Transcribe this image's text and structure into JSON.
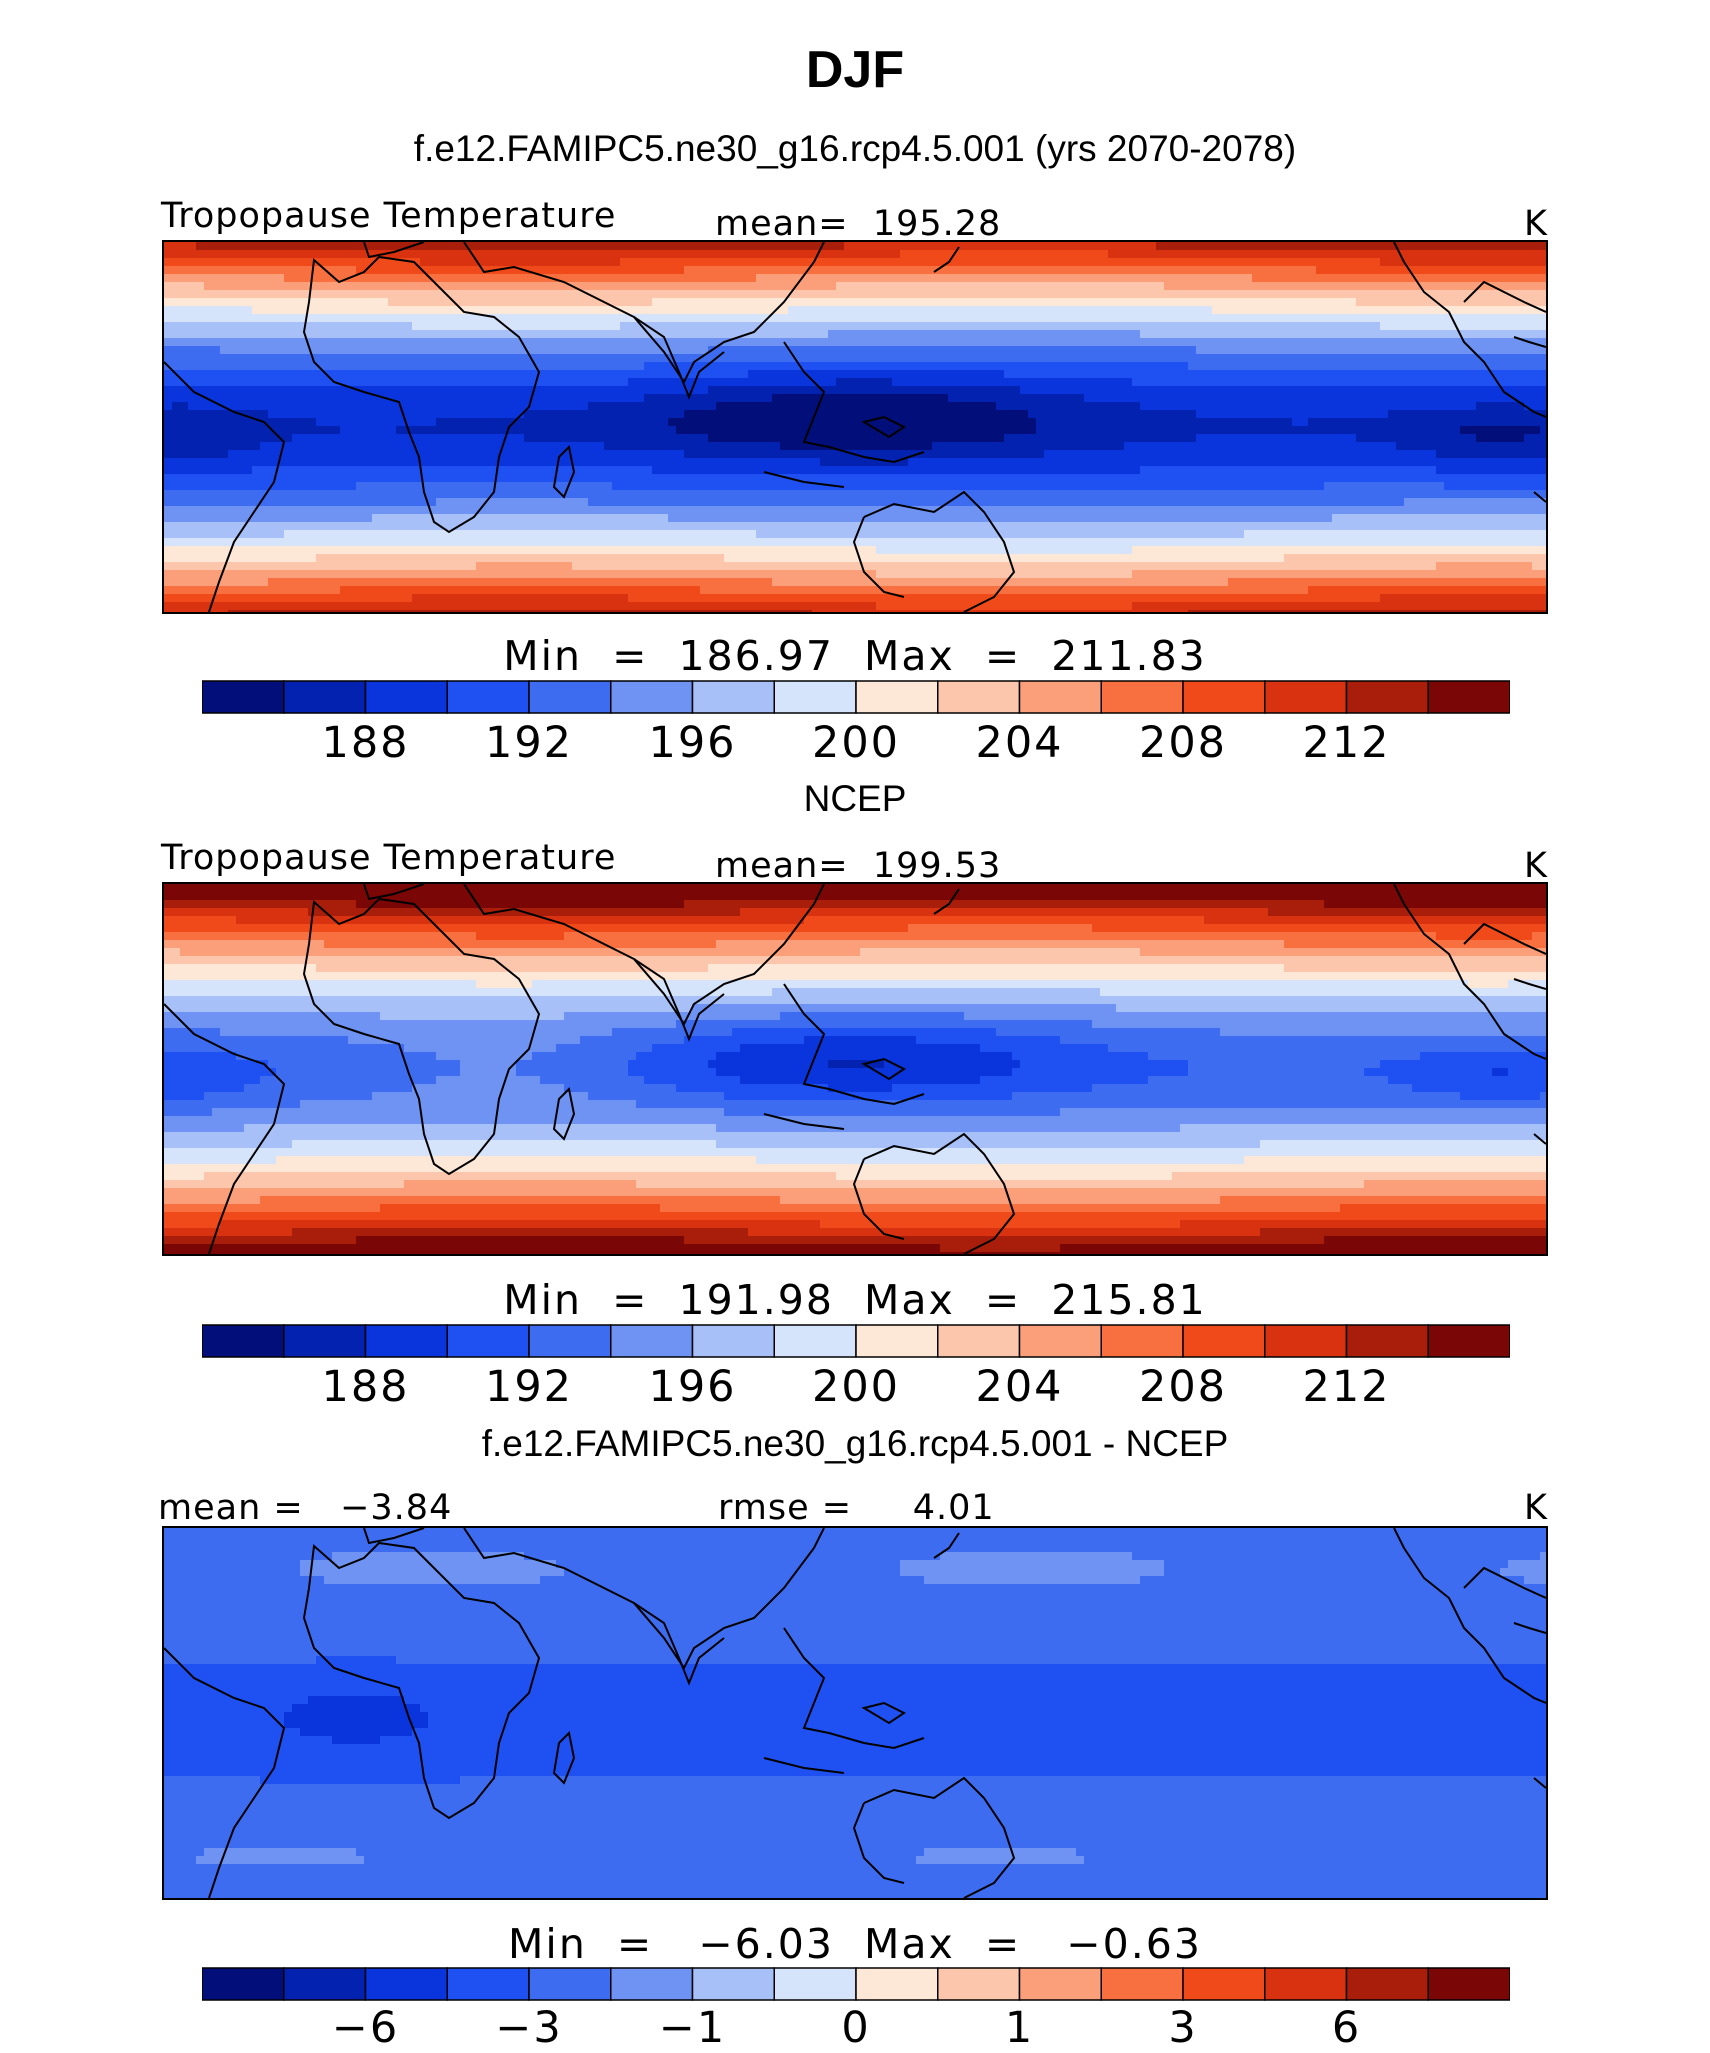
{
  "title": "DJF",
  "palette": [
    "#020f7a",
    "#0422b0",
    "#0a35dc",
    "#1f51f2",
    "#3e6cf0",
    "#6f93f3",
    "#a7c0f8",
    "#d5e4fb",
    "#fde8d8",
    "#fcc6ac",
    "#fb9e7a",
    "#f8703f",
    "#f04a1a",
    "#d93210",
    "#a81e0a",
    "#7a0606"
  ],
  "colorbar_temp": {
    "ticks": [
      "188",
      "192",
      "196",
      "200",
      "204",
      "208",
      "212"
    ]
  },
  "colorbar_diff": {
    "ticks": [
      "−6",
      "−3",
      "−1",
      "0",
      "1",
      "3",
      "6"
    ]
  },
  "panels": [
    {
      "heading": "f.e12.FAMIPC5.ne30_g16.rcp4.5.001 (yrs 2070-2078)",
      "left_label": "Tropopause Temperature",
      "center_label": "mean=  195.28",
      "units": "K",
      "minmax": "Min  =  186.97  Max  =  211.83"
    },
    {
      "heading": "NCEP",
      "left_label": "Tropopause Temperature",
      "center_label": "mean=  199.53",
      "units": "K",
      "minmax": "Min  =  191.98  Max  =  215.81"
    },
    {
      "heading": "f.e12.FAMIPC5.ne30_g16.rcp4.5.001 - NCEP",
      "left_label": "mean =   −3.84",
      "center_label": "rmse =     4.01",
      "units": "K",
      "minmax": "Min  =   −6.03  Max  =   −0.63"
    }
  ]
}
